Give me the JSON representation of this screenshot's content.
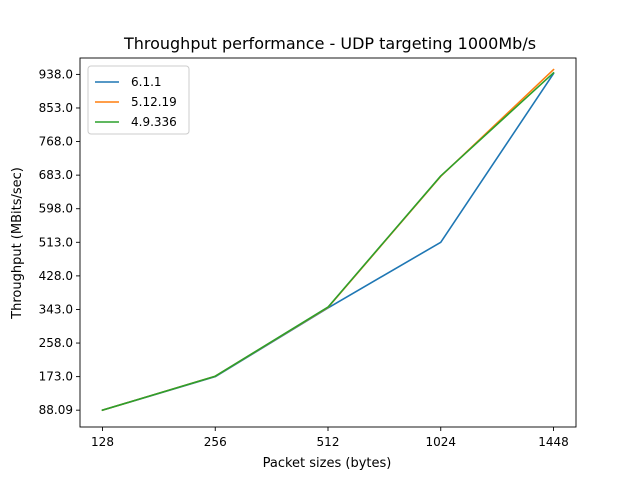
{
  "chart_data": {
    "type": "line",
    "title": "Throughput performance - UDP targeting 1000Mb/s",
    "xlabel": "Packet sizes (bytes)",
    "ylabel": "Throughput (MBits/sec)",
    "categories": [
      "128",
      "256",
      "512",
      "1024",
      "1448"
    ],
    "yticks": [
      "88.09",
      "173.0",
      "258.0",
      "343.0",
      "428.0",
      "513.0",
      "598.0",
      "683.0",
      "768.0",
      "853.0",
      "938.0"
    ],
    "ylim": [
      45.5,
      979.5
    ],
    "grid": false,
    "legend_position": "top-left",
    "series": [
      {
        "name": "6.1.1",
        "color": "#1f77b4",
        "values": [
          88.09,
          173.0,
          347.0,
          513.0,
          940.0
        ]
      },
      {
        "name": "5.12.19",
        "color": "#ff7f0e",
        "values": [
          88.09,
          174.0,
          348.0,
          680.0,
          950.0
        ]
      },
      {
        "name": "4.9.336",
        "color": "#2ca02c",
        "values": [
          88.09,
          174.0,
          349.0,
          681.0,
          942.0
        ]
      }
    ]
  }
}
